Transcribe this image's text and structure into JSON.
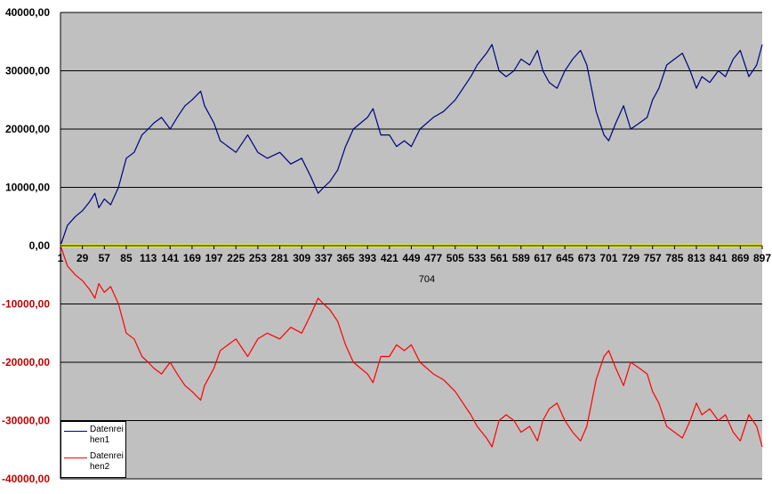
{
  "chart_data": {
    "type": "line",
    "title": "",
    "xlabel": "704",
    "ylabel": "",
    "xlim": [
      1,
      897
    ],
    "ylim": [
      -40000,
      40000
    ],
    "grid": true,
    "legend_position": "bottom-left",
    "background_color": "#c0c0c0",
    "y_ticks": [
      {
        "value": 40000,
        "label": "40000,00"
      },
      {
        "value": 30000,
        "label": "30000,00"
      },
      {
        "value": 20000,
        "label": "20000,00"
      },
      {
        "value": 10000,
        "label": "10000,00"
      },
      {
        "value": 0,
        "label": "0,00"
      },
      {
        "value": -10000,
        "label": "-10000,00"
      },
      {
        "value": -20000,
        "label": "-20000,00"
      },
      {
        "value": -30000,
        "label": "-30000,00"
      },
      {
        "value": -40000,
        "label": "-40000,00"
      }
    ],
    "x_ticks": [
      "1",
      "29",
      "57",
      "85",
      "113",
      "141",
      "169",
      "197",
      "225",
      "253",
      "281",
      "309",
      "337",
      "365",
      "393",
      "421",
      "449",
      "477",
      "505",
      "533",
      "561",
      "589",
      "617",
      "645",
      "673",
      "701",
      "729",
      "757",
      "785",
      "813",
      "841",
      "869",
      "897"
    ],
    "series": [
      {
        "name": "Datenreihen1",
        "color": "#000080",
        "x": [
          1,
          10,
          20,
          29,
          38,
          45,
          50,
          57,
          65,
          75,
          85,
          95,
          105,
          113,
          120,
          130,
          141,
          150,
          160,
          169,
          180,
          185,
          197,
          205,
          215,
          225,
          240,
          253,
          265,
          281,
          295,
          309,
          320,
          330,
          337,
          345,
          355,
          365,
          375,
          393,
          400,
          410,
          421,
          430,
          440,
          449,
          460,
          477,
          490,
          505,
          515,
          525,
          533,
          545,
          552,
          561,
          570,
          580,
          589,
          600,
          610,
          617,
          625,
          635,
          645,
          655,
          665,
          673,
          685,
          695,
          701,
          710,
          720,
          729,
          740,
          750,
          757,
          765,
          775,
          785,
          795,
          805,
          813,
          820,
          830,
          841,
          850,
          860,
          869,
          880,
          890,
          897
        ],
        "y": [
          0,
          3500,
          5000,
          6000,
          7500,
          9000,
          6500,
          8000,
          7000,
          10000,
          15000,
          16000,
          19000,
          20000,
          21000,
          22000,
          20000,
          22000,
          24000,
          25000,
          26500,
          24000,
          21000,
          18000,
          17000,
          16000,
          19000,
          16000,
          15000,
          16000,
          14000,
          15000,
          12000,
          9000,
          10000,
          11000,
          13000,
          17000,
          20000,
          22000,
          23500,
          19000,
          19000,
          17000,
          18000,
          17000,
          20000,
          22000,
          23000,
          25000,
          27000,
          29000,
          31000,
          33000,
          34500,
          30000,
          29000,
          30000,
          32000,
          31000,
          33500,
          30000,
          28000,
          27000,
          30000,
          32000,
          33500,
          31000,
          23000,
          19000,
          18000,
          21000,
          24000,
          20000,
          21000,
          22000,
          25000,
          27000,
          31000,
          32000,
          33000,
          30000,
          27000,
          29000,
          28000,
          30000,
          29000,
          32000,
          33500,
          29000,
          31000,
          34500
        ]
      },
      {
        "name": "Datenreihen2",
        "color": "#ff0000",
        "x": [
          1,
          10,
          20,
          29,
          38,
          45,
          50,
          57,
          65,
          75,
          85,
          95,
          105,
          113,
          120,
          130,
          141,
          150,
          160,
          169,
          180,
          185,
          197,
          205,
          215,
          225,
          240,
          253,
          265,
          281,
          295,
          309,
          320,
          330,
          337,
          345,
          355,
          365,
          375,
          393,
          400,
          410,
          421,
          430,
          440,
          449,
          460,
          477,
          490,
          505,
          515,
          525,
          533,
          545,
          552,
          561,
          570,
          580,
          589,
          600,
          610,
          617,
          625,
          635,
          645,
          655,
          665,
          673,
          685,
          695,
          701,
          710,
          720,
          729,
          740,
          750,
          757,
          765,
          775,
          785,
          795,
          805,
          813,
          820,
          830,
          841,
          850,
          860,
          869,
          880,
          890,
          897
        ],
        "y": [
          0,
          -3500,
          -5000,
          -6000,
          -7500,
          -9000,
          -6500,
          -8000,
          -7000,
          -10000,
          -15000,
          -16000,
          -19000,
          -20000,
          -21000,
          -22000,
          -20000,
          -22000,
          -24000,
          -25000,
          -26500,
          -24000,
          -21000,
          -18000,
          -17000,
          -16000,
          -19000,
          -16000,
          -15000,
          -16000,
          -14000,
          -15000,
          -12000,
          -9000,
          -10000,
          -11000,
          -13000,
          -17000,
          -20000,
          -22000,
          -23500,
          -19000,
          -19000,
          -17000,
          -18000,
          -17000,
          -20000,
          -22000,
          -23000,
          -25000,
          -27000,
          -29000,
          -31000,
          -33000,
          -34500,
          -30000,
          -29000,
          -30000,
          -32000,
          -31000,
          -33500,
          -30000,
          -28000,
          -27000,
          -30000,
          -32000,
          -33500,
          -31000,
          -23000,
          -19000,
          -18000,
          -21000,
          -24000,
          -20000,
          -21000,
          -22000,
          -25000,
          -27000,
          -31000,
          -32000,
          -33000,
          -30000,
          -27000,
          -29000,
          -28000,
          -30000,
          -29000,
          -32000,
          -33500,
          -29000,
          -31000,
          -34500
        ]
      },
      {
        "name": "",
        "color": "#ffff00",
        "x": [
          1,
          897
        ],
        "y": [
          0,
          0
        ]
      }
    ]
  },
  "legend": {
    "items": [
      {
        "label": "Datenreihen1",
        "color": "#000080"
      },
      {
        "label": "Datenreihen2",
        "color": "#ff0000"
      }
    ]
  }
}
